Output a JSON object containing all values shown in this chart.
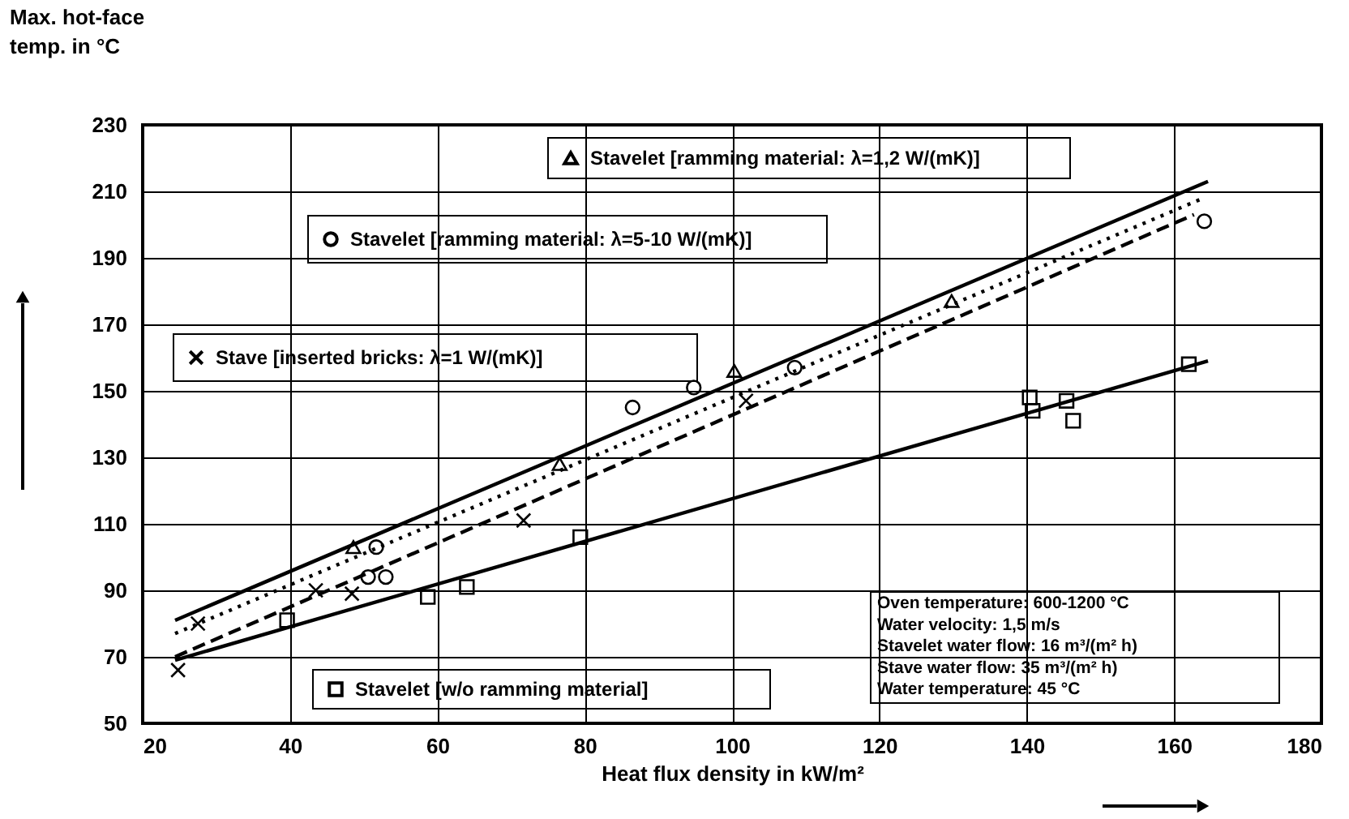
{
  "chart_data": {
    "type": "scatter",
    "xlabel": "Heat flux density in kW/m²",
    "ylabel": "Max. hot-face\ntemp. in °C",
    "xlim": [
      20,
      180
    ],
    "xticks": [
      20,
      40,
      60,
      80,
      100,
      120,
      140,
      160,
      180
    ],
    "ylim": [
      50,
      230
    ],
    "yticks": [
      50,
      70,
      90,
      110,
      130,
      150,
      170,
      190,
      210,
      230
    ],
    "grid": true,
    "legend": "top",
    "series": [
      {
        "name": "Stavelet [ramming material: λ=1,2 W/(mK)]",
        "marker": "triangle",
        "color": "#000000",
        "x": [
          48.6,
          76.6,
          100.3,
          129.8
        ],
        "values": [
          103,
          128,
          156,
          177
        ]
      },
      {
        "name": "Stavelet [ramming material: λ=5-10 W/(mK)]",
        "marker": "circle",
        "color": "#000000",
        "x": [
          50.6,
          51.7,
          53,
          86.5,
          94.8,
          108.5,
          164.1
        ],
        "values": [
          94,
          103,
          94,
          145,
          151,
          157,
          201
        ]
      },
      {
        "name": "Stave [inserted bricks: λ=1 W/(mK)]",
        "marker": "cross",
        "color": "#000000",
        "x": [
          24.8,
          27.5,
          43.5,
          48.4,
          71.7,
          101.9
        ],
        "values": [
          66,
          80,
          90,
          89,
          111,
          147
        ]
      },
      {
        "name": "Stavelet [w/o ramming material]",
        "marker": "square",
        "color": "#000000",
        "x": [
          39.6,
          58.7,
          64,
          79.4,
          140.4,
          140.8,
          145.4,
          146.3,
          162
        ],
        "values": [
          81,
          88,
          91,
          106,
          148,
          144,
          147,
          141,
          158
        ]
      },
      {
        "type": "line",
        "line_style": "solid",
        "color": "#000000",
        "x": [
          24.4,
          164.6
        ],
        "values": [
          81,
          213
        ]
      },
      {
        "type": "line",
        "line_style": "dotted",
        "color": "#000000",
        "x": [
          24.4,
          164
        ],
        "values": [
          77,
          208
        ]
      },
      {
        "type": "line",
        "line_style": "dashed",
        "color": "#000000",
        "x": [
          24.4,
          162.7
        ],
        "values": [
          70,
          203
        ]
      },
      {
        "type": "line",
        "line_style": "solid",
        "color": "#000000",
        "x": [
          24.4,
          164.6
        ],
        "values": [
          69,
          159
        ]
      }
    ],
    "annotations": [
      "Oven temperature:  600-1200 °C",
      "Water velocity:  1,5 m/s",
      "Stavelet water flow:  16 m³/(m² h)",
      "Stave water flow:  35 m³/(m² h)",
      "Water temperature:  45 °C"
    ]
  }
}
